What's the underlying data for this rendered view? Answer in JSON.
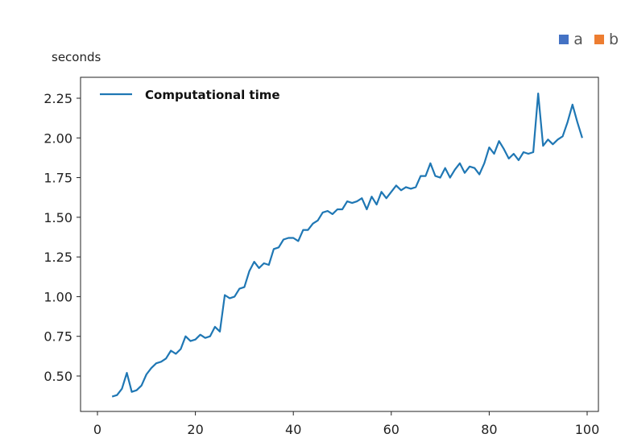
{
  "figure": {
    "y_unit_label": "seconds",
    "top_legend": [
      {
        "label": "a",
        "color": "#4472C4"
      },
      {
        "label": "b",
        "color": "#ED7D31"
      }
    ]
  },
  "chart_data": {
    "type": "line",
    "title": "",
    "xlabel": "",
    "ylabel": "seconds",
    "xlim": [
      0,
      100
    ],
    "ylim": [
      0.37,
      2.3
    ],
    "x_ticks": [
      0,
      20,
      40,
      60,
      80,
      100
    ],
    "y_ticks": [
      0.5,
      0.75,
      1.0,
      1.25,
      1.5,
      1.75,
      2.0,
      2.25
    ],
    "x_tick_labels": [
      "0",
      "20",
      "40",
      "60",
      "80",
      "100"
    ],
    "y_tick_labels": [
      "0.50",
      "0.75",
      "1.00",
      "1.25",
      "1.50",
      "1.75",
      "2.00",
      "2.25"
    ],
    "grid": false,
    "legend_position": "top-left",
    "series": [
      {
        "name": "Computational time",
        "color": "#1f77b4",
        "x": [
          3,
          4,
          5,
          6,
          7,
          8,
          9,
          10,
          11,
          12,
          13,
          14,
          15,
          16,
          17,
          18,
          19,
          20,
          21,
          22,
          23,
          24,
          25,
          26,
          27,
          28,
          29,
          30,
          31,
          32,
          33,
          34,
          35,
          36,
          37,
          38,
          39,
          40,
          41,
          42,
          43,
          44,
          45,
          46,
          47,
          48,
          49,
          50,
          51,
          52,
          53,
          54,
          55,
          56,
          57,
          58,
          59,
          60,
          61,
          62,
          63,
          64,
          65,
          66,
          67,
          68,
          69,
          70,
          71,
          72,
          73,
          74,
          75,
          76,
          77,
          78,
          79,
          80,
          81,
          82,
          83,
          84,
          85,
          86,
          87,
          88,
          89,
          90,
          91,
          92,
          93,
          94,
          95,
          96,
          97,
          98,
          99
        ],
        "y": [
          0.37,
          0.38,
          0.42,
          0.52,
          0.4,
          0.41,
          0.44,
          0.51,
          0.55,
          0.58,
          0.59,
          0.61,
          0.66,
          0.64,
          0.67,
          0.75,
          0.72,
          0.73,
          0.76,
          0.74,
          0.75,
          0.81,
          0.78,
          1.01,
          0.99,
          1.0,
          1.05,
          1.06,
          1.16,
          1.22,
          1.18,
          1.21,
          1.2,
          1.3,
          1.31,
          1.36,
          1.37,
          1.37,
          1.35,
          1.42,
          1.42,
          1.46,
          1.48,
          1.53,
          1.54,
          1.52,
          1.55,
          1.55,
          1.6,
          1.59,
          1.6,
          1.62,
          1.55,
          1.63,
          1.58,
          1.66,
          1.62,
          1.66,
          1.7,
          1.67,
          1.69,
          1.68,
          1.69,
          1.76,
          1.76,
          1.84,
          1.76,
          1.75,
          1.81,
          1.75,
          1.8,
          1.84,
          1.78,
          1.82,
          1.81,
          1.77,
          1.84,
          1.94,
          1.9,
          1.98,
          1.93,
          1.87,
          1.9,
          1.86,
          1.91,
          1.9,
          1.91,
          2.28,
          1.95,
          1.99,
          1.96,
          1.99,
          2.01,
          2.1,
          2.21,
          2.1,
          2.0
        ]
      }
    ]
  }
}
